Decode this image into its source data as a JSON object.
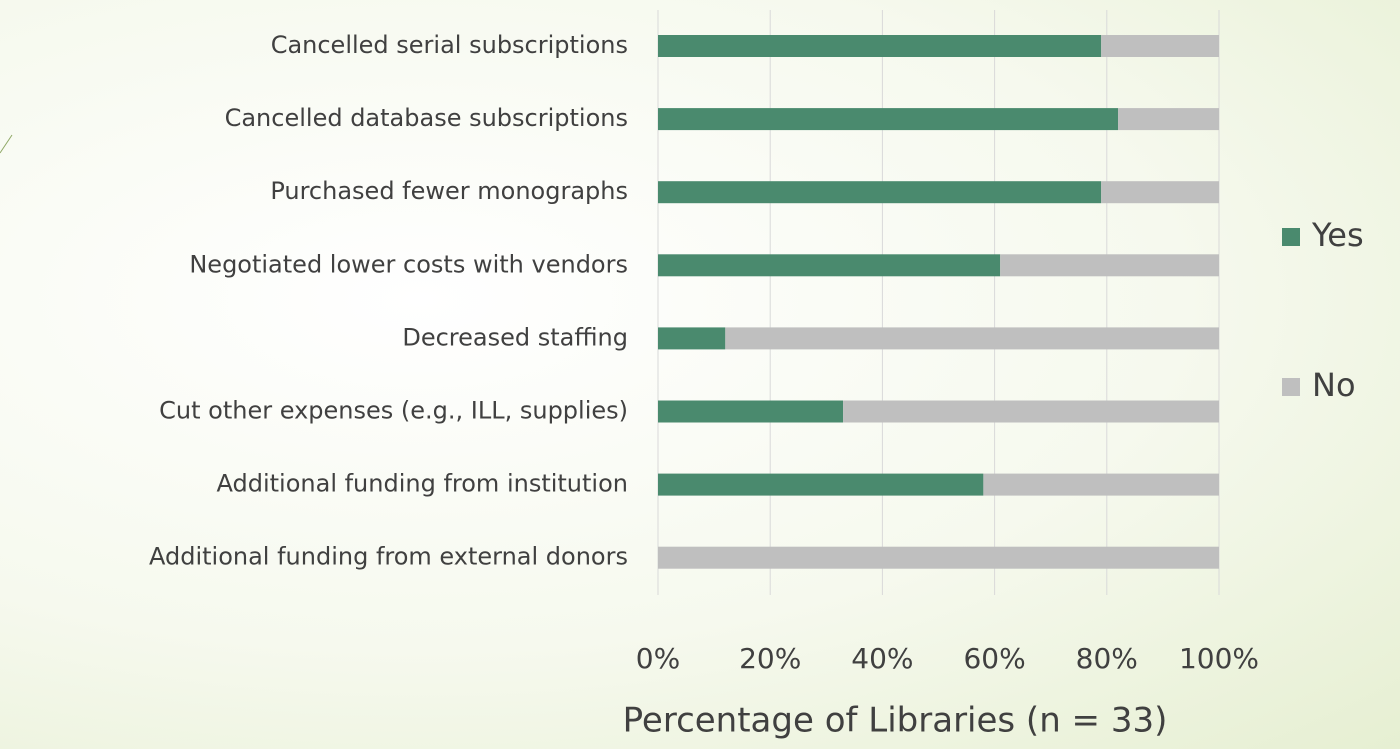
{
  "chart_data": {
    "type": "stacked_barh",
    "x_label": "Percentage of Libraries (n = 33)",
    "categories": [
      "Cancelled serial subscriptions",
      "Cancelled database subscriptions",
      "Purchased fewer monographs",
      "Negotiated lower costs with vendors",
      "Decreased staffing",
      "Cut other expenses (e.g., ILL, supplies)",
      "Additional funding from institution",
      "Additional funding from external donors"
    ],
    "series": [
      {
        "name": "Yes",
        "color": "#4a8a6e",
        "values": [
          79,
          82,
          79,
          61,
          12,
          33,
          58,
          0
        ]
      },
      {
        "name": "No",
        "color": "#bfbfbf",
        "values": [
          21,
          18,
          21,
          39,
          88,
          67,
          42,
          100
        ]
      }
    ],
    "xlim": [
      0,
      100
    ],
    "xticks": [
      {
        "value": 0,
        "label": "0%"
      },
      {
        "value": 20,
        "label": "20%"
      },
      {
        "value": 40,
        "label": "40%"
      },
      {
        "value": 60,
        "label": "60%"
      },
      {
        "value": 80,
        "label": "80%"
      },
      {
        "value": 100,
        "label": "100%"
      }
    ],
    "grid": true,
    "legend": "right"
  }
}
